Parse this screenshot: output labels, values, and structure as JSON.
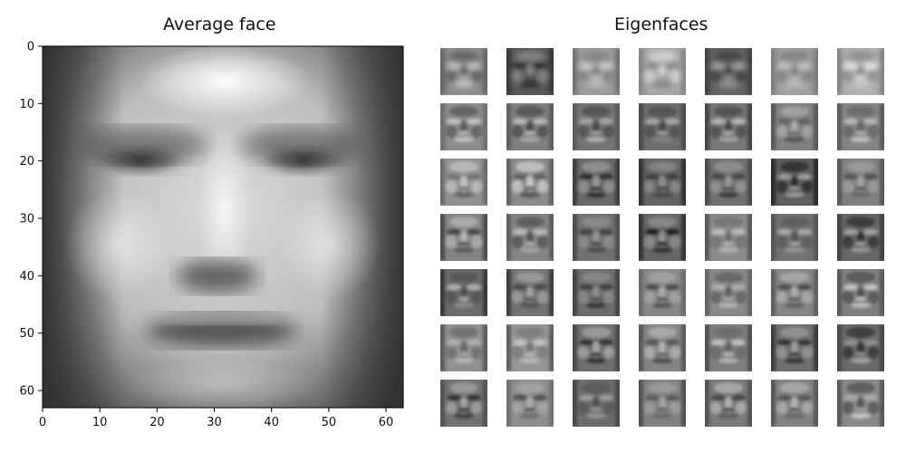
{
  "figure": {
    "left_title": "Average face",
    "right_title": "Eigenfaces"
  },
  "chart_data": {
    "type": "heatmap",
    "title": "Average face",
    "xlim": [
      0,
      63
    ],
    "ylim": [
      63,
      0
    ],
    "x_ticks": [
      "0",
      "10",
      "20",
      "30",
      "40",
      "50",
      "60"
    ],
    "y_ticks": [
      "0",
      "10",
      "20",
      "30",
      "40",
      "50",
      "60"
    ],
    "colormap": "gray"
  },
  "eigenfaces": {
    "rows": 7,
    "cols": 7,
    "count": 49
  }
}
